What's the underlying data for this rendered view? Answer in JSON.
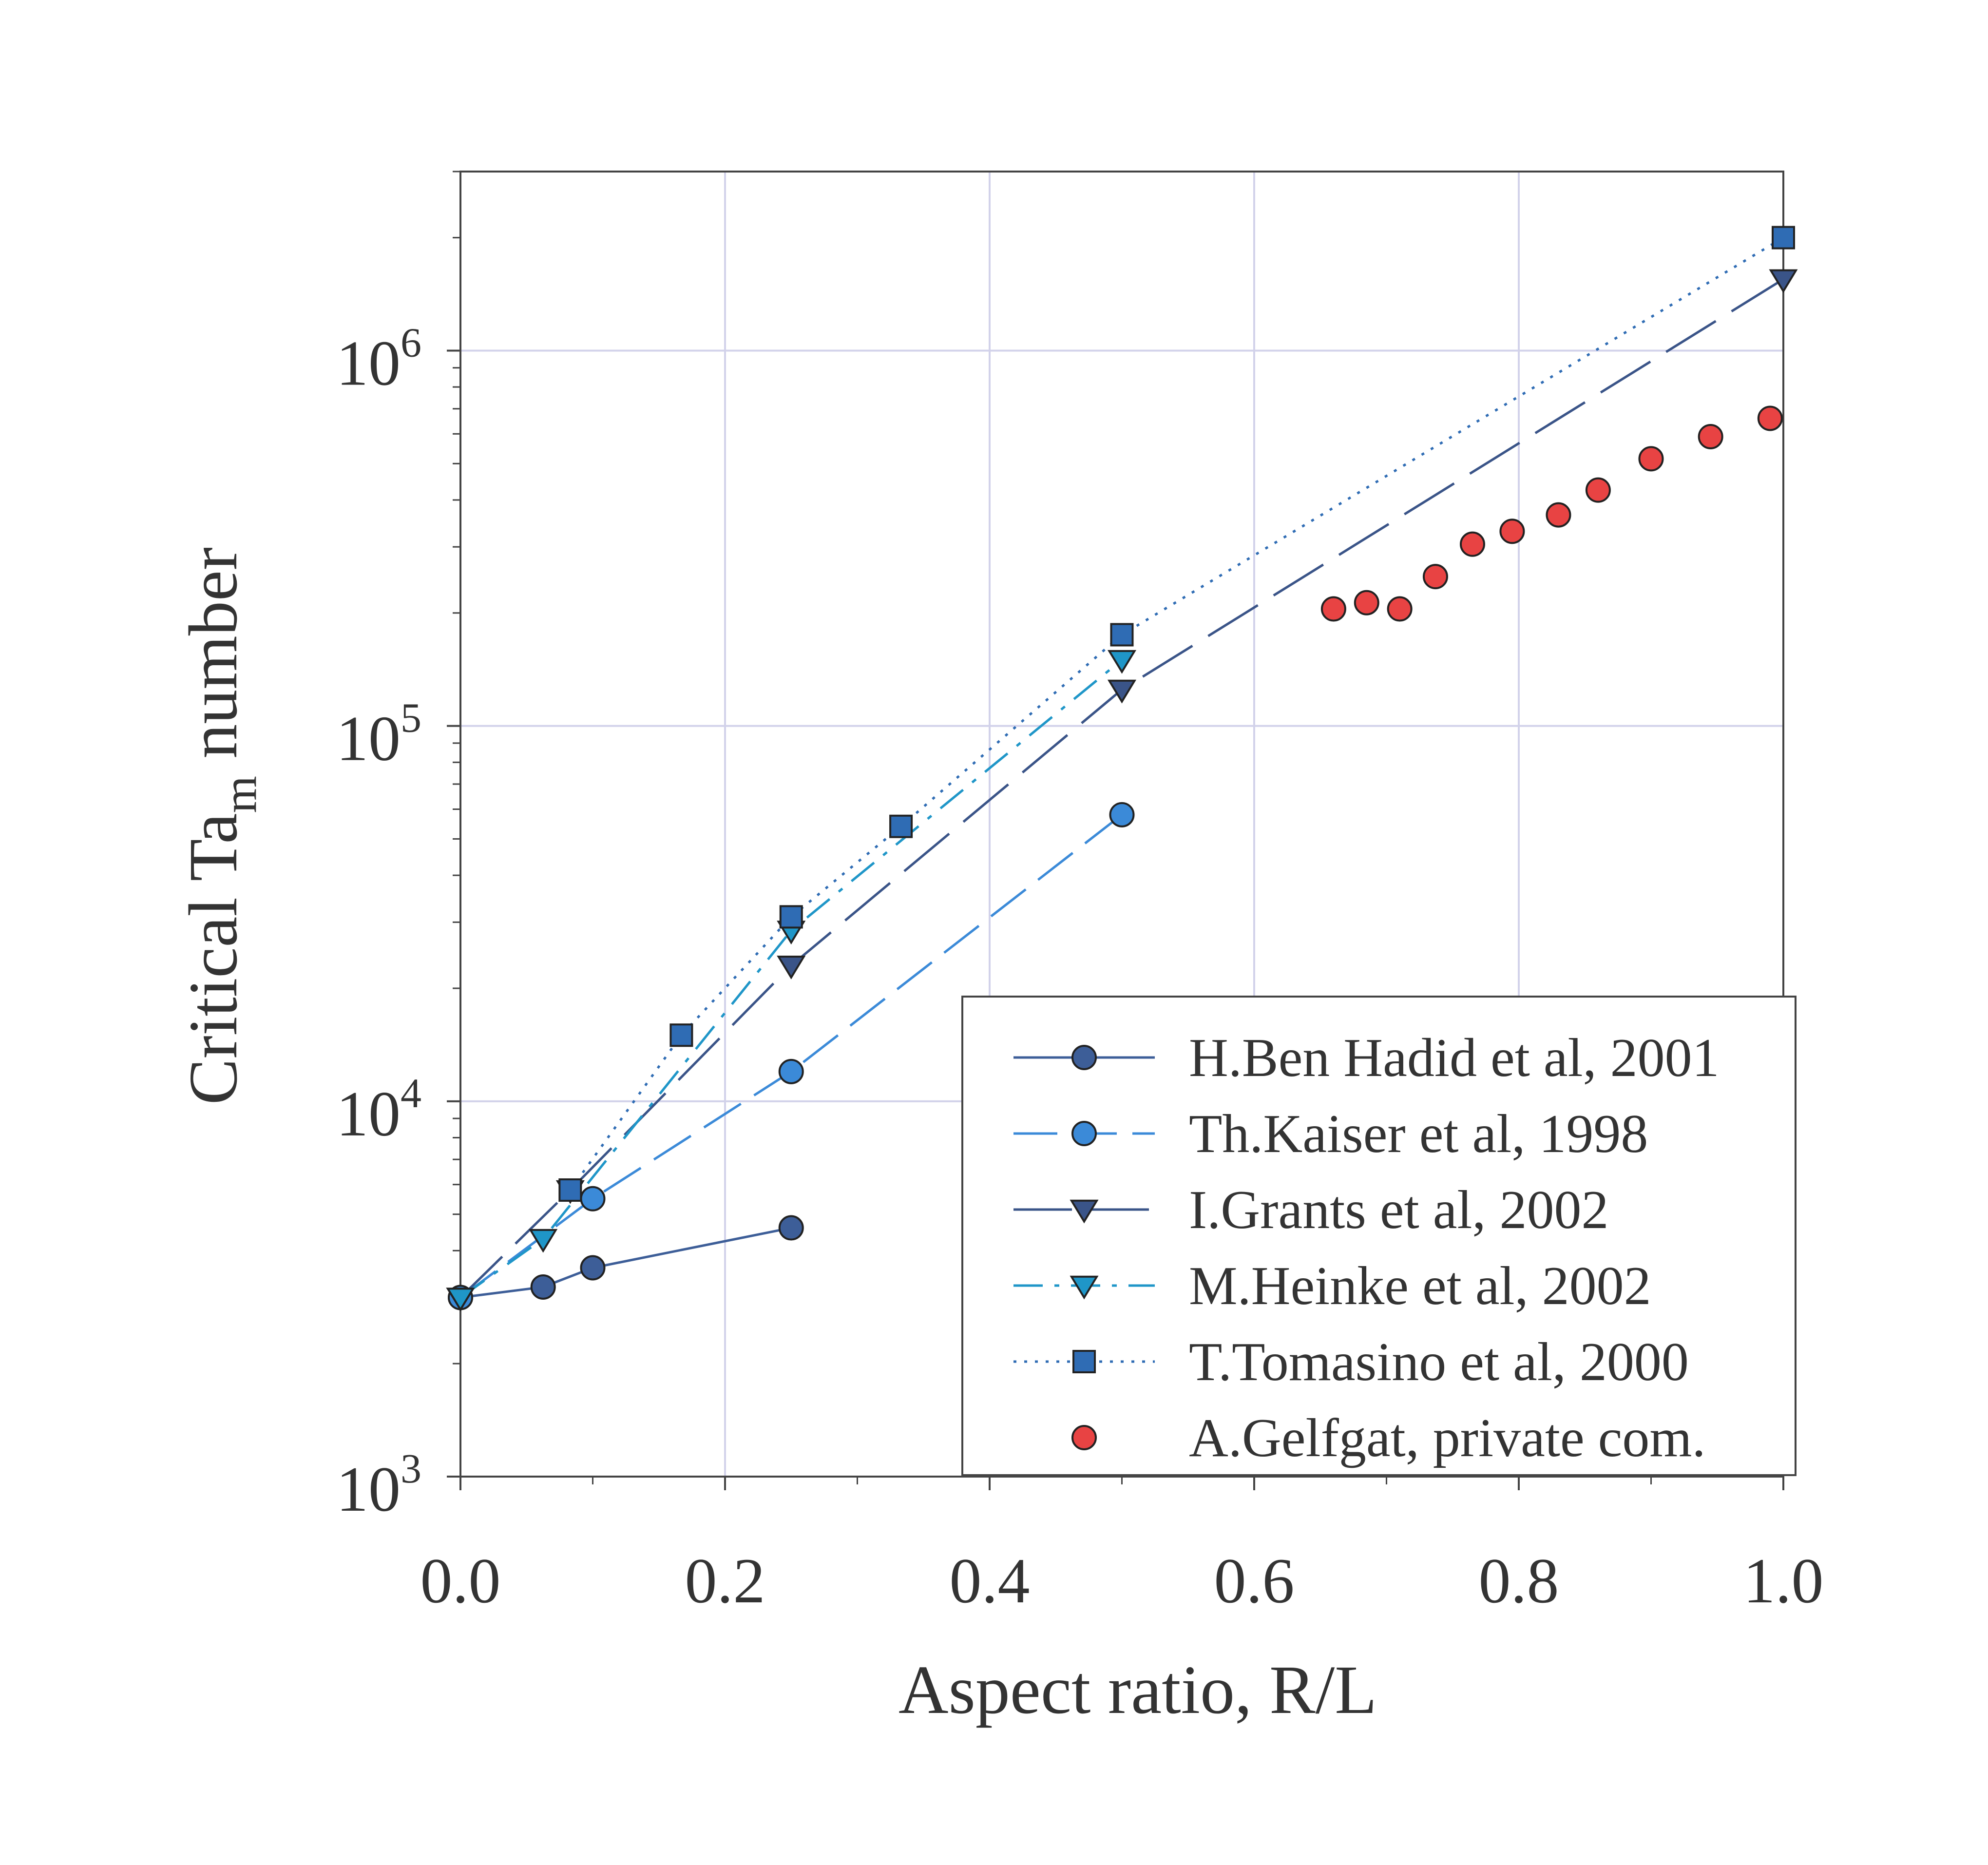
{
  "chart_data": {
    "type": "scatter",
    "xlabel": "Aspect ratio, R/L",
    "ylabel_main": "Critical Ta",
    "ylabel_sub": "m",
    "ylabel_end": " number",
    "xlim": [
      0.0,
      1.0
    ],
    "ylim": [
      1000,
      3000000
    ],
    "yscale": "log",
    "grid": true,
    "legend_position": "bottom-right",
    "x_ticks": [
      {
        "value": 0.0,
        "label": "0.0"
      },
      {
        "value": 0.2,
        "label": "0.2"
      },
      {
        "value": 0.4,
        "label": "0.4"
      },
      {
        "value": 0.6,
        "label": "0.6"
      },
      {
        "value": 0.8,
        "label": "0.8"
      },
      {
        "value": 1.0,
        "label": "1.0"
      }
    ],
    "y_ticks": [
      {
        "value": 1000,
        "base": "10",
        "exp": "3"
      },
      {
        "value": 10000,
        "base": "10",
        "exp": "4"
      },
      {
        "value": 100000,
        "base": "10",
        "exp": "5"
      },
      {
        "value": 1000000,
        "base": "10",
        "exp": "6"
      }
    ],
    "series": [
      {
        "name": "H.Ben Hadid et al, 2001",
        "marker": "circle",
        "line": "solid",
        "color": "#3d5e98",
        "x": [
          0.0,
          0.0625,
          0.1,
          0.25
        ],
        "y": [
          3000,
          3200,
          3600,
          4600
        ]
      },
      {
        "name": "Th.Kaiser et al, 1998",
        "marker": "circle",
        "line": "dashed",
        "color": "#3b8ad8",
        "x": [
          0.0,
          0.1,
          0.25,
          0.5
        ],
        "y": [
          3000,
          5500,
          12000,
          58000
        ]
      },
      {
        "name": "I.Grants et al, 2002",
        "marker": "triangle-down",
        "line": "longdash",
        "color": "#3a5488",
        "x": [
          0.0,
          0.083,
          0.25,
          0.5,
          1.0
        ],
        "y": [
          3000,
          5800,
          23000,
          125000,
          1550000
        ]
      },
      {
        "name": "M.Heinke et al, 2002",
        "marker": "triangle-down",
        "line": "dashdot",
        "color": "#1f96c8",
        "x": [
          0.0,
          0.0625,
          0.25,
          0.5
        ],
        "y": [
          3000,
          4300,
          28500,
          150000
        ]
      },
      {
        "name": "T.Tomasino et al, 2000",
        "marker": "square",
        "line": "dotted",
        "color": "#2f6cb4",
        "x": [
          0.083,
          0.167,
          0.25,
          0.333,
          0.5,
          1.0
        ],
        "y": [
          5800,
          15000,
          31000,
          54000,
          175000,
          2000000
        ]
      },
      {
        "name": "A.Gelfgat, private com.",
        "marker": "circle",
        "line": "none",
        "color": "#e84343",
        "x": [
          0.66,
          0.685,
          0.71,
          0.737,
          0.765,
          0.795,
          0.83,
          0.86,
          0.9,
          0.945,
          0.99
        ],
        "y": [
          205000,
          213000,
          205000,
          250000,
          305000,
          330000,
          365000,
          425000,
          515000,
          590000,
          660000
        ]
      }
    ]
  }
}
